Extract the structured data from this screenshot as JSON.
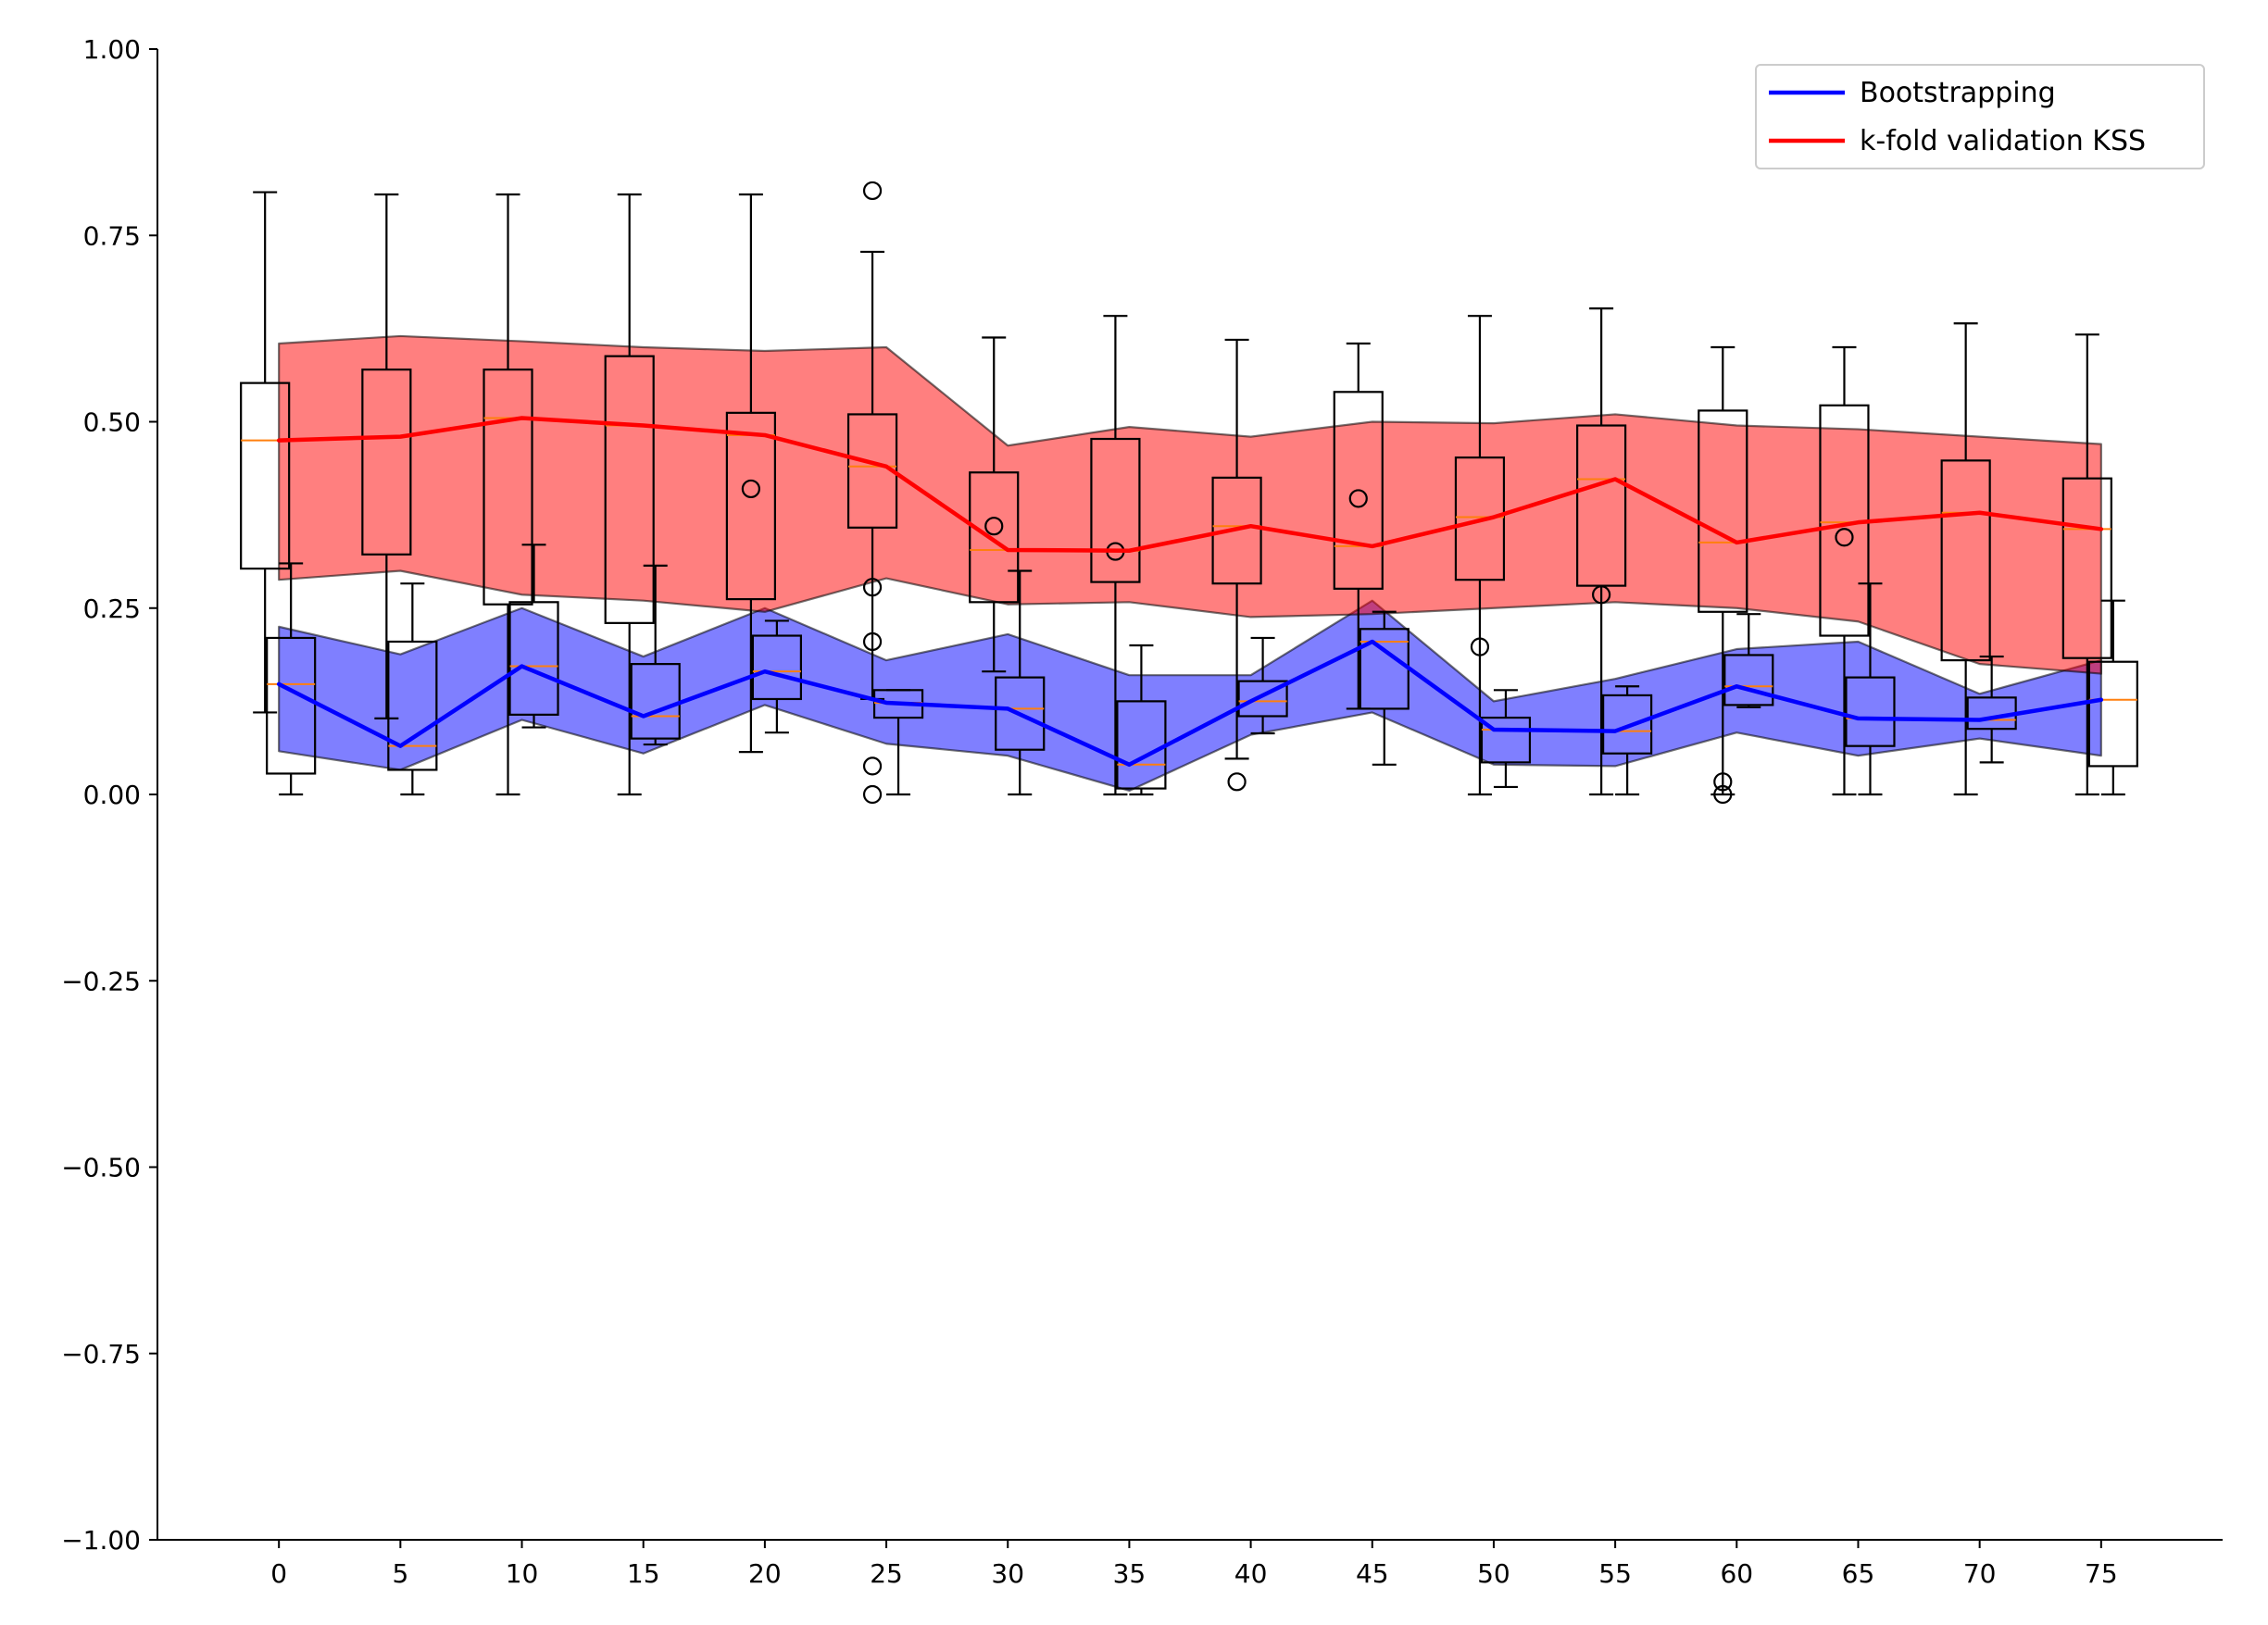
{
  "chart_data": {
    "type": "line",
    "title": "",
    "xlabel": "",
    "ylabel": "",
    "xlim": [
      -5,
      80
    ],
    "ylim": [
      -1.0,
      1.0
    ],
    "x_ticks": [
      0,
      5,
      10,
      15,
      20,
      25,
      30,
      35,
      40,
      45,
      50,
      55,
      60,
      65,
      70,
      75
    ],
    "x_tick_labels": [
      "0",
      "5",
      "10",
      "15",
      "20",
      "25",
      "30",
      "35",
      "40",
      "45",
      "50",
      "55",
      "60",
      "65",
      "70",
      "75"
    ],
    "y_ticks": [
      -1.0,
      -0.75,
      -0.5,
      -0.25,
      0.0,
      0.25,
      0.5,
      0.75,
      1.0
    ],
    "y_tick_labels": [
      "−1.00",
      "−0.75",
      "−0.50",
      "−0.25",
      "0.00",
      "0.25",
      "0.50",
      "0.75",
      "1.00"
    ],
    "grid": false,
    "legend_position": "top-right",
    "x": [
      0,
      5,
      10,
      15,
      20,
      25,
      30,
      35,
      40,
      45,
      50,
      55,
      60,
      65,
      70,
      75
    ],
    "series": [
      {
        "name": "Bootstrapping",
        "color": "#0000ff",
        "values": [
          0.148,
          0.065,
          0.172,
          0.105,
          0.165,
          0.123,
          0.115,
          0.04,
          0.125,
          0.205,
          0.087,
          0.085,
          0.145,
          0.102,
          0.1,
          0.127
        ],
        "band_upper": [
          0.225,
          0.188,
          0.25,
          0.185,
          0.25,
          0.18,
          0.215,
          0.16,
          0.16,
          0.26,
          0.125,
          0.155,
          0.195,
          0.205,
          0.135,
          0.18
        ],
        "band_lower": [
          0.058,
          0.033,
          0.1,
          0.055,
          0.12,
          0.068,
          0.052,
          0.005,
          0.08,
          0.11,
          0.04,
          0.038,
          0.083,
          0.052,
          0.075,
          0.052
        ],
        "band_color": "#0000ff"
      },
      {
        "name": "k-fold validation KSS",
        "color": "#ff0000",
        "values": [
          0.475,
          0.48,
          0.505,
          0.495,
          0.482,
          0.44,
          0.328,
          0.327,
          0.36,
          0.333,
          0.372,
          0.423,
          0.338,
          0.365,
          0.378,
          0.356
        ],
        "band_upper": [
          0.605,
          0.615,
          0.608,
          0.6,
          0.595,
          0.6,
          0.468,
          0.493,
          0.48,
          0.5,
          0.498,
          0.51,
          0.495,
          0.49,
          0.48,
          0.47
        ],
        "band_lower": [
          0.288,
          0.3,
          0.268,
          0.26,
          0.245,
          0.29,
          0.255,
          0.258,
          0.238,
          0.242,
          0.25,
          0.258,
          0.25,
          0.232,
          0.175,
          0.162
        ],
        "band_color": "#ff0000"
      }
    ],
    "boxplots": [
      {
        "group": "k-fold",
        "x": 0,
        "q1": 0.303,
        "median": 0.475,
        "q3": 0.552,
        "whisker_low": 0.11,
        "whisker_high": 0.808,
        "outliers": []
      },
      {
        "group": "k-fold",
        "x": 5,
        "q1": 0.322,
        "median": 0.48,
        "q3": 0.57,
        "whisker_low": 0.102,
        "whisker_high": 0.805,
        "outliers": []
      },
      {
        "group": "k-fold",
        "x": 10,
        "q1": 0.255,
        "median": 0.505,
        "q3": 0.57,
        "whisker_low": 0.0,
        "whisker_high": 0.805,
        "outliers": []
      },
      {
        "group": "k-fold",
        "x": 15,
        "q1": 0.23,
        "median": 0.495,
        "q3": 0.588,
        "whisker_low": 0.0,
        "whisker_high": 0.805,
        "outliers": []
      },
      {
        "group": "k-fold",
        "x": 20,
        "q1": 0.262,
        "median": 0.482,
        "q3": 0.512,
        "whisker_low": 0.057,
        "whisker_high": 0.805,
        "outliers": [
          0.41
        ]
      },
      {
        "group": "k-fold",
        "x": 25,
        "q1": 0.358,
        "median": 0.44,
        "q3": 0.51,
        "whisker_low": 0.128,
        "whisker_high": 0.728,
        "outliers": [
          0.81,
          0.278,
          0.205,
          0.038,
          0.0
        ]
      },
      {
        "group": "k-fold",
        "x": 30,
        "q1": 0.258,
        "median": 0.328,
        "q3": 0.432,
        "whisker_low": 0.165,
        "whisker_high": 0.613,
        "outliers": [
          0.36
        ]
      },
      {
        "group": "k-fold",
        "x": 35,
        "q1": 0.285,
        "median": 0.327,
        "q3": 0.477,
        "whisker_low": 0.0,
        "whisker_high": 0.642,
        "outliers": [
          0.326
        ]
      },
      {
        "group": "k-fold",
        "x": 40,
        "q1": 0.283,
        "median": 0.36,
        "q3": 0.425,
        "whisker_low": 0.048,
        "whisker_high": 0.61,
        "outliers": [
          0.017
        ]
      },
      {
        "group": "k-fold",
        "x": 45,
        "q1": 0.276,
        "median": 0.333,
        "q3": 0.54,
        "whisker_low": 0.115,
        "whisker_high": 0.605,
        "outliers": [
          0.397
        ]
      },
      {
        "group": "k-fold",
        "x": 50,
        "q1": 0.288,
        "median": 0.372,
        "q3": 0.452,
        "whisker_low": 0.0,
        "whisker_high": 0.642,
        "outliers": [
          0.198
        ]
      },
      {
        "group": "k-fold",
        "x": 55,
        "q1": 0.28,
        "median": 0.423,
        "q3": 0.495,
        "whisker_low": 0.0,
        "whisker_high": 0.652,
        "outliers": [
          0.268
        ]
      },
      {
        "group": "k-fold",
        "x": 60,
        "q1": 0.245,
        "median": 0.338,
        "q3": 0.515,
        "whisker_low": 0.0,
        "whisker_high": 0.6,
        "outliers": [
          0.017,
          0.0
        ]
      },
      {
        "group": "k-fold",
        "x": 65,
        "q1": 0.213,
        "median": 0.365,
        "q3": 0.522,
        "whisker_low": 0.0,
        "whisker_high": 0.6,
        "outliers": [
          0.345
        ]
      },
      {
        "group": "k-fold",
        "x": 70,
        "q1": 0.18,
        "median": 0.378,
        "q3": 0.448,
        "whisker_low": 0.0,
        "whisker_high": 0.632,
        "outliers": []
      },
      {
        "group": "k-fold",
        "x": 75,
        "q1": 0.183,
        "median": 0.356,
        "q3": 0.424,
        "whisker_low": 0.0,
        "whisker_high": 0.617,
        "outliers": []
      },
      {
        "group": "bootstrap",
        "x": 0,
        "q1": 0.028,
        "median": 0.148,
        "q3": 0.21,
        "whisker_low": 0.0,
        "whisker_high": 0.31,
        "outliers": []
      },
      {
        "group": "bootstrap",
        "x": 5,
        "q1": 0.033,
        "median": 0.065,
        "q3": 0.205,
        "whisker_low": 0.0,
        "whisker_high": 0.283,
        "outliers": []
      },
      {
        "group": "bootstrap",
        "x": 10,
        "q1": 0.107,
        "median": 0.172,
        "q3": 0.258,
        "whisker_low": 0.09,
        "whisker_high": 0.335,
        "outliers": []
      },
      {
        "group": "bootstrap",
        "x": 15,
        "q1": 0.075,
        "median": 0.105,
        "q3": 0.175,
        "whisker_low": 0.067,
        "whisker_high": 0.307,
        "outliers": []
      },
      {
        "group": "bootstrap",
        "x": 20,
        "q1": 0.128,
        "median": 0.165,
        "q3": 0.213,
        "whisker_low": 0.083,
        "whisker_high": 0.233,
        "outliers": []
      },
      {
        "group": "bootstrap",
        "x": 25,
        "q1": 0.103,
        "median": 0.123,
        "q3": 0.14,
        "whisker_low": 0.0,
        "whisker_high": 0.14,
        "outliers": []
      },
      {
        "group": "bootstrap",
        "x": 30,
        "q1": 0.06,
        "median": 0.115,
        "q3": 0.157,
        "whisker_low": 0.0,
        "whisker_high": 0.3,
        "outliers": []
      },
      {
        "group": "bootstrap",
        "x": 35,
        "q1": 0.008,
        "median": 0.04,
        "q3": 0.125,
        "whisker_low": 0.0,
        "whisker_high": 0.2,
        "outliers": []
      },
      {
        "group": "bootstrap",
        "x": 40,
        "q1": 0.105,
        "median": 0.125,
        "q3": 0.152,
        "whisker_low": 0.082,
        "whisker_high": 0.21,
        "outliers": []
      },
      {
        "group": "bootstrap",
        "x": 45,
        "q1": 0.115,
        "median": 0.205,
        "q3": 0.222,
        "whisker_low": 0.04,
        "whisker_high": 0.245,
        "outliers": []
      },
      {
        "group": "bootstrap",
        "x": 50,
        "q1": 0.043,
        "median": 0.087,
        "q3": 0.103,
        "whisker_low": 0.01,
        "whisker_high": 0.14,
        "outliers": []
      },
      {
        "group": "bootstrap",
        "x": 55,
        "q1": 0.055,
        "median": 0.085,
        "q3": 0.133,
        "whisker_low": 0.0,
        "whisker_high": 0.145,
        "outliers": []
      },
      {
        "group": "bootstrap",
        "x": 60,
        "q1": 0.12,
        "median": 0.145,
        "q3": 0.187,
        "whisker_low": 0.117,
        "whisker_high": 0.242,
        "outliers": []
      },
      {
        "group": "bootstrap",
        "x": 65,
        "q1": 0.065,
        "median": 0.102,
        "q3": 0.157,
        "whisker_low": 0.0,
        "whisker_high": 0.283,
        "outliers": []
      },
      {
        "group": "bootstrap",
        "x": 70,
        "q1": 0.088,
        "median": 0.1,
        "q3": 0.13,
        "whisker_low": 0.043,
        "whisker_high": 0.185,
        "outliers": []
      },
      {
        "group": "bootstrap",
        "x": 75,
        "q1": 0.038,
        "median": 0.127,
        "q3": 0.178,
        "whisker_low": 0.0,
        "whisker_high": 0.26,
        "outliers": []
      }
    ]
  }
}
